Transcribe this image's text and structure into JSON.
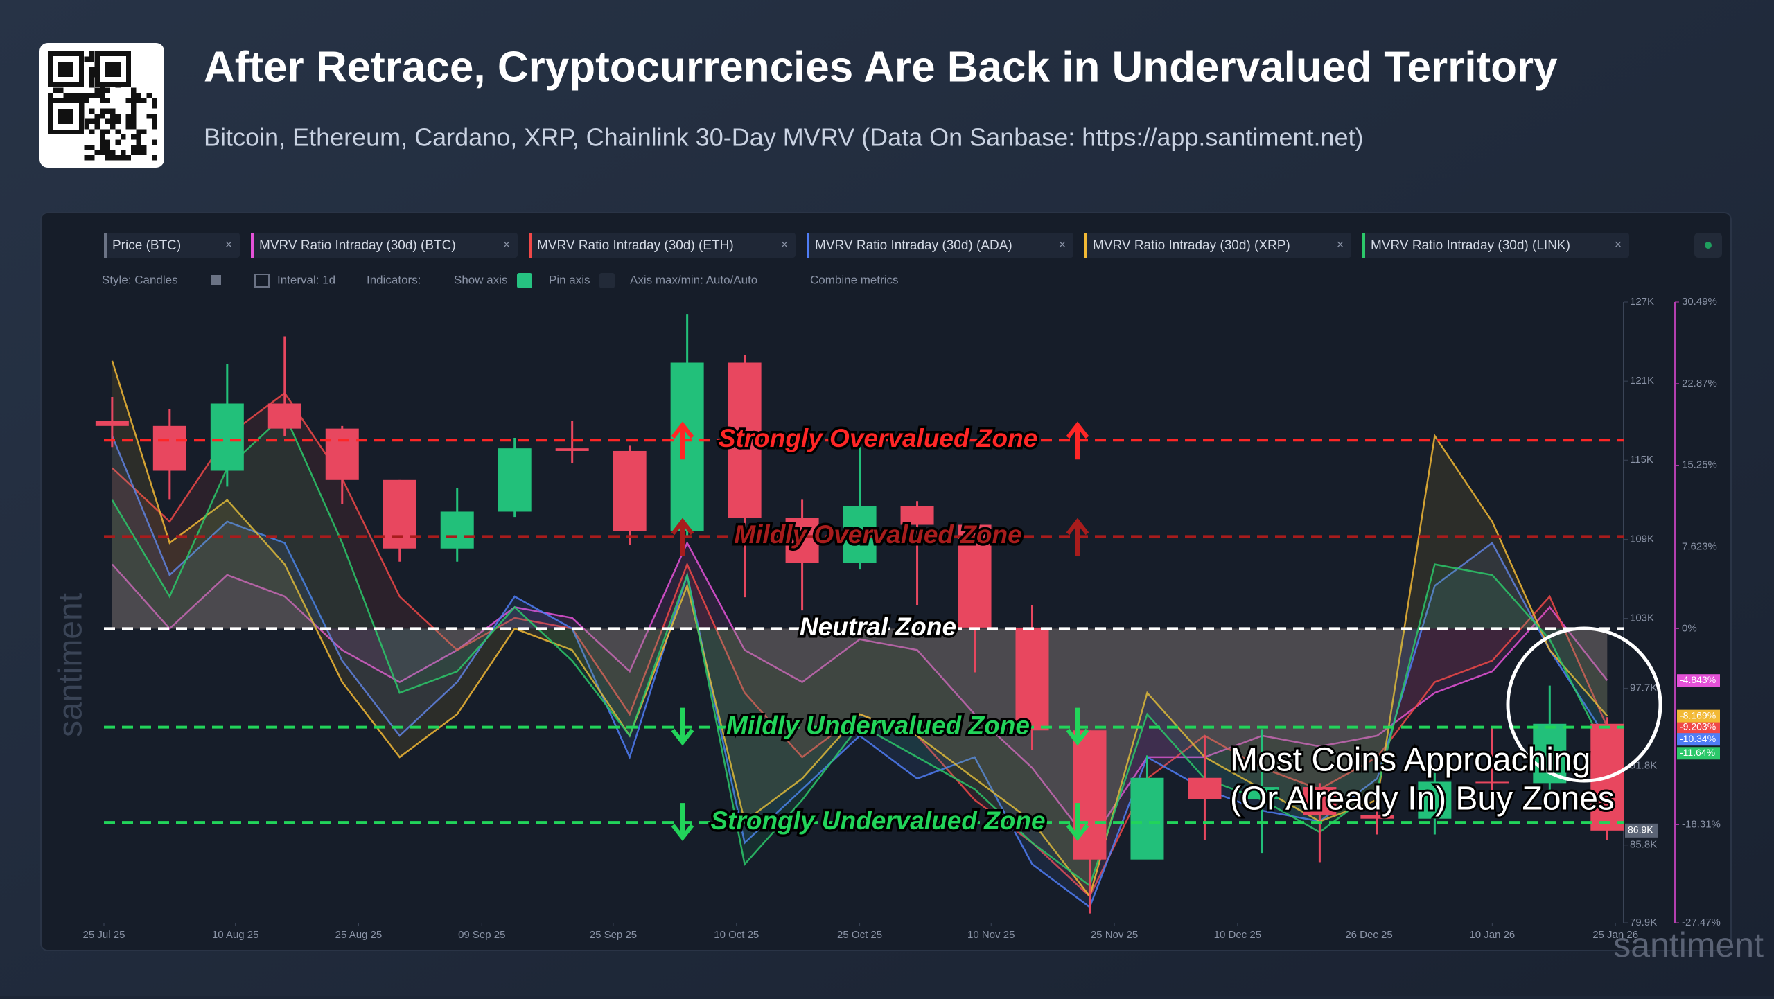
{
  "toolbar": [
    "Style: Candles",
    "Interval: 1d",
    "Indicators:",
    "Show axis",
    "Pin axis",
    "Axis max/min: Auto/Auto",
    "Combine metrics"
  ],
  "watermarks": [
    "santiment",
    "santiment"
  ],
  "chart_data": {
    "type": "candlestick",
    "title": "After Retrace, Cryptocurrencies Are Back in Undervalued Territory",
    "subtitle": "Bitcoin, Ethereum, Cardano, XRP, Chainlink 30-Day MVRV (Data On Sanbase: https://app.santiment.net)",
    "x": [
      "2025-07-26",
      "2025-08-02",
      "2025-08-09",
      "2025-08-16",
      "2025-08-23",
      "2025-08-30",
      "2025-09-06",
      "2025-09-13",
      "2025-09-20",
      "2025-09-27",
      "2025-10-04",
      "2025-10-11",
      "2025-10-18",
      "2025-10-25",
      "2025-11-01",
      "2025-11-08",
      "2025-11-15",
      "2025-11-22",
      "2025-11-29",
      "2025-12-06",
      "2025-12-13",
      "2025-12-20",
      "2025-12-27",
      "2026-01-03",
      "2026-01-10",
      "2026-01-17",
      "2026-01-24"
    ],
    "xlim": [
      "2025-07-25",
      "2026-01-26"
    ],
    "xticks": [
      {
        "value": "2025-07-25",
        "label": "25 Jul 25"
      },
      {
        "value": "2025-08-10",
        "label": "10 Aug 25"
      },
      {
        "value": "2025-08-25",
        "label": "25 Aug 25"
      },
      {
        "value": "2025-09-09",
        "label": "09 Sep 25"
      },
      {
        "value": "2025-09-25",
        "label": "25 Sep 25"
      },
      {
        "value": "2025-10-10",
        "label": "10 Oct 25"
      },
      {
        "value": "2025-10-25",
        "label": "25 Oct 25"
      },
      {
        "value": "2025-11-10",
        "label": "10 Nov 25"
      },
      {
        "value": "2025-11-25",
        "label": "25 Nov 25"
      },
      {
        "value": "2025-12-10",
        "label": "10 Dec 25"
      },
      {
        "value": "2025-12-26",
        "label": "26 Dec 25"
      },
      {
        "value": "2026-01-10",
        "label": "10 Jan 26"
      },
      {
        "value": "2026-01-25",
        "label": "25 Jan 26"
      }
    ],
    "candles": {
      "name": "Price (BTC)",
      "up_color": "#22c07a",
      "down_color": "#e8475f",
      "open": [
        118000,
        117600,
        114200,
        119300,
        117400,
        113500,
        108300,
        111100,
        115900,
        115700,
        109600,
        122400,
        110600,
        107200,
        111500,
        110100,
        102300,
        94500,
        84700,
        90900,
        89300,
        90200,
        88100,
        87800,
        90600,
        90500,
        95000
      ],
      "high": [
        119800,
        118900,
        122300,
        124400,
        117600,
        113500,
        112900,
        116700,
        118000,
        116100,
        126100,
        123000,
        112000,
        116000,
        111900,
        106400,
        104000,
        94500,
        92600,
        94100,
        94600,
        90500,
        90300,
        91400,
        94800,
        97900,
        95500
      ],
      "low": [
        116000,
        112000,
        113000,
        116800,
        111700,
        107300,
        107300,
        110700,
        114800,
        108600,
        109200,
        104600,
        103600,
        106700,
        104000,
        98900,
        93000,
        80600,
        84800,
        86200,
        85200,
        84500,
        86600,
        86600,
        89200,
        90000,
        86200
      ],
      "close": [
        117600,
        114200,
        119300,
        117400,
        113500,
        108300,
        111100,
        115900,
        115700,
        109600,
        122400,
        110600,
        107200,
        111500,
        110100,
        102300,
        94500,
        84700,
        90900,
        89300,
        90200,
        88100,
        87800,
        90600,
        90500,
        95000,
        86900
      ],
      "last_label": "86.9K"
    },
    "ylim": [
      79900,
      127000
    ],
    "yticks": [
      {
        "value": 127000,
        "label": "127K"
      },
      {
        "value": 121000,
        "label": "121K"
      },
      {
        "value": 115000,
        "label": "115K"
      },
      {
        "value": 109000,
        "label": "109K"
      },
      {
        "value": 103000,
        "label": "103K"
      },
      {
        "value": 97700,
        "label": "97.7K"
      },
      {
        "value": 91800,
        "label": "91.8K"
      },
      {
        "value": 85800,
        "label": "85.8K"
      },
      {
        "value": 79900,
        "label": "79.9K"
      }
    ],
    "y2lim": [
      -27.47,
      30.49
    ],
    "y2ticks": [
      {
        "value": 30.49,
        "label": "30.49%"
      },
      {
        "value": 22.87,
        "label": "22.87%"
      },
      {
        "value": 15.25,
        "label": "15.25%"
      },
      {
        "value": 7.623,
        "label": "7.623%"
      },
      {
        "value": 0,
        "label": "0%"
      },
      {
        "value": -18.31,
        "label": "-18.31%"
      },
      {
        "value": -27.47,
        "label": "-27.47%"
      }
    ],
    "series": [
      {
        "name": "MVRV Ratio Intraday (30d) (BTC)",
        "color": "#e552d8",
        "axis": "y2",
        "last_label": "-4.843%",
        "values": [
          6,
          0,
          5,
          3,
          -2,
          -5,
          -2,
          2,
          1,
          -4,
          8,
          -2,
          -5,
          -1,
          -2,
          -8,
          -13,
          -20,
          -12,
          -12,
          -10,
          -11,
          -10,
          -6,
          -4,
          2,
          -4.843
        ]
      },
      {
        "name": "MVRV Ratio Intraday (30d) (ETH)",
        "color": "#f04848",
        "axis": "y2",
        "last_label": "-9.203%",
        "values": [
          15,
          10,
          18,
          22,
          14,
          3,
          -2,
          1,
          0,
          -8,
          6,
          -6,
          -12,
          -8,
          -10,
          -16,
          -20,
          -25,
          -14,
          -10,
          -13,
          -15,
          -12,
          -5,
          -3,
          3,
          -9.203
        ]
      },
      {
        "name": "MVRV Ratio Intraday (30d) (ADA)",
        "color": "#4f7df5",
        "axis": "y2",
        "last_label": "-10.34%",
        "values": [
          18,
          5,
          10,
          8,
          -3,
          -10,
          -5,
          3,
          0,
          -12,
          5,
          -20,
          -15,
          -10,
          -14,
          -12,
          -22,
          -26,
          -12,
          -15,
          -17,
          -18,
          -14,
          4,
          8,
          -2,
          -10.34
        ]
      },
      {
        "name": "MVRV Ratio Intraday (30d) (XRP)",
        "color": "#f2b935",
        "axis": "y2",
        "last_label": "-8.169%",
        "values": [
          25,
          8,
          12,
          6,
          -5,
          -12,
          -8,
          0,
          -2,
          -10,
          4,
          -18,
          -14,
          -8,
          -10,
          -14,
          -18,
          -25,
          -6,
          -12,
          -15,
          -18,
          -16,
          18,
          10,
          -2,
          -8.169
        ]
      },
      {
        "name": "MVRV Ratio Intraday (30d) (LINK)",
        "color": "#2cc86a",
        "axis": "y2",
        "last_label": "-11.64%",
        "values": [
          12,
          3,
          15,
          20,
          8,
          -6,
          -4,
          2,
          -3,
          -10,
          5,
          -22,
          -16,
          -9,
          -12,
          -15,
          -20,
          -24,
          -8,
          -14,
          -16,
          -19,
          -15,
          6,
          5,
          -1,
          -11.64
        ]
      }
    ],
    "zones": [
      {
        "label": "Strongly Overvalued Zone",
        "value": 17.6,
        "color": "#ff2626"
      },
      {
        "label": "Mildly Overvalued Zone",
        "value": 8.6,
        "color": "#a81c1c"
      },
      {
        "label": "Neutral Zone",
        "value": 0,
        "color": "#ffffff"
      },
      {
        "label": "Mildly Undervalued Zone",
        "value": -9.2,
        "color": "#22d45a"
      },
      {
        "label": "Strongly Undervalued Zone",
        "value": -18.1,
        "color": "#22d45a"
      }
    ],
    "annotation": [
      "Most Coins Approaching",
      "(Or Already In) Buy Zones"
    ]
  }
}
